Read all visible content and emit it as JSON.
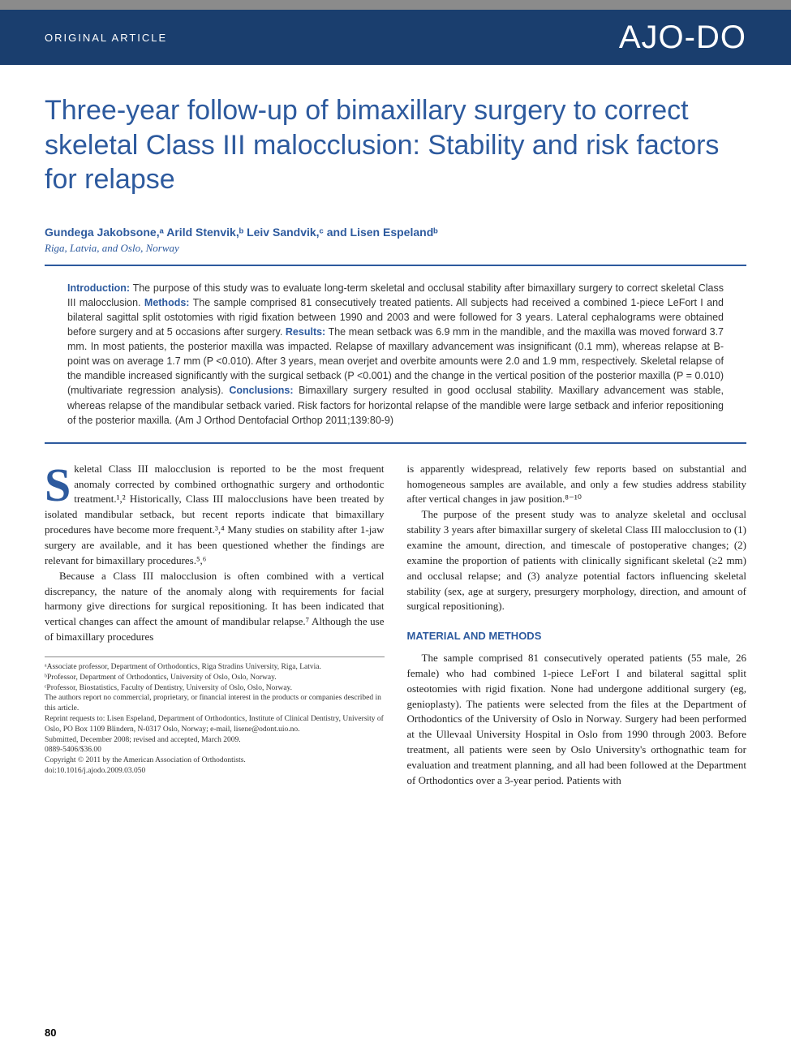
{
  "colors": {
    "primary_blue": "#2d5a9e",
    "header_blue": "#1a3e6e",
    "gray_bar": "#8b8b8b",
    "text": "#333333",
    "background": "#ffffff"
  },
  "typography": {
    "title_fontsize": 34,
    "body_fontsize": 13,
    "abstract_fontsize": 12.5,
    "footnote_fontsize": 9.5,
    "dropcap_fontsize": 58
  },
  "header": {
    "article_type": "ORIGINAL ARTICLE",
    "journal_logo": "AJO-DO"
  },
  "title": "Three-year follow-up of bimaxillary surgery to correct skeletal Class III malocclusion: Stability and risk factors for relapse",
  "authors_line": "Gundega Jakobsone,ᵃ Arild Stenvik,ᵇ Leiv Sandvik,ᶜ and Lisen Espelandᵇ",
  "location": "Riga, Latvia, and Oslo, Norway",
  "abstract": {
    "intro_label": "Introduction:",
    "intro": " The purpose of this study was to evaluate long-term skeletal and occlusal stability after bimaxillary surgery to correct skeletal Class III malocclusion. ",
    "methods_label": "Methods:",
    "methods": " The sample comprised 81 consecutively treated patients. All subjects had received a combined 1-piece LeFort I and bilateral sagittal split ostotomies with rigid fixation between 1990 and 2003 and were followed for 3 years. Lateral cephalograms were obtained before surgery and at 5 occasions after surgery. ",
    "results_label": "Results:",
    "results": " The mean setback was 6.9 mm in the mandible, and the maxilla was moved forward 3.7 mm. In most patients, the posterior maxilla was impacted. Relapse of maxillary advancement was insignificant (0.1 mm), whereas relapse at B-point was on average 1.7 mm (P <0.010). After 3 years, mean overjet and overbite amounts were 2.0 and 1.9 mm, respectively. Skeletal relapse of the mandible increased significantly with the surgical setback (P <0.001) and the change in the vertical position of the posterior maxilla (P = 0.010) (multivariate regression analysis). ",
    "conclusions_label": "Conclusions:",
    "conclusions": " Bimaxillary surgery resulted in good occlusal stability. Maxillary advancement was stable, whereas relapse of the mandibular setback varied. Risk factors for horizontal relapse of the mandible were large setback and inferior repositioning of the posterior maxilla. (Am J Orthod Dentofacial Orthop 2011;139:80-9)"
  },
  "body": {
    "col1_p1": "keletal Class III malocclusion is reported to be the most frequent anomaly corrected by combined orthognathic surgery and orthodontic treatment.¹,² Historically, Class III malocclusions have been treated by isolated mandibular setback, but recent reports indicate that bimaxillary procedures have become more frequent.³,⁴ Many studies on stability after 1-jaw surgery are available, and it has been questioned whether the findings are relevant for bimaxillary procedures.⁵,⁶",
    "col1_p2": "Because a Class III malocclusion is often combined with a vertical discrepancy, the nature of the anomaly along with requirements for facial harmony give directions for surgical repositioning. It has been indicated that vertical changes can affect the amount of mandibular relapse.⁷ Although the use of bimaxillary procedures",
    "col2_p1": "is apparently widespread, relatively few reports based on substantial and homogeneous samples are available, and only a few studies address stability after vertical changes in jaw position.⁸⁻¹⁰",
    "col2_p2": "The purpose of the present study was to analyze skeletal and occlusal stability 3 years after bimaxillar surgery of skeletal Class III malocclusion to (1) examine the amount, direction, and timescale of postoperative changes; (2) examine the proportion of patients with clinically significant skeletal (≥2 mm) and occlusal relapse; and (3) analyze potential factors influencing skeletal stability (sex, age at surgery, presurgery morphology, direction, and amount of surgical repositioning).",
    "section_head": "MATERIAL AND METHODS",
    "col2_p3": "The sample comprised 81 consecutively operated patients (55 male, 26 female) who had combined 1-piece LeFort I and bilateral sagittal split osteotomies with rigid fixation. None had undergone additional surgery (eg, genioplasty). The patients were selected from the files at the Department of Orthodontics of the University of Oslo in Norway. Surgery had been performed at the Ullevaal University Hospital in Oslo from 1990 through 2003. Before treatment, all patients were seen by Oslo University's orthognathic team for evaluation and treatment planning, and all had been followed at the Department of Orthodontics over a 3-year period. Patients with"
  },
  "footnotes": {
    "a": "ᵃAssociate professor, Department of Orthodontics, Riga Stradins University, Riga, Latvia.",
    "b": "ᵇProfessor, Department of Orthodontics, University of Oslo, Oslo, Norway.",
    "c": "ᶜProfessor, Biostatistics, Faculty of Dentistry, University of Oslo, Oslo, Norway.",
    "disclosure": "The authors report no commercial, proprietary, or financial interest in the products or companies described in this article.",
    "reprint": "Reprint requests to: Lisen Espeland, Department of Orthodontics, Institute of Clinical Dentistry, University of Oslo, PO Box 1109 Blindern, N-0317 Oslo, Norway; e-mail, lisene@odont.uio.no.",
    "submitted": "Submitted, December 2008; revised and accepted, March 2009.",
    "issn": "0889-5406/$36.00",
    "copyright": "Copyright © 2011 by the American Association of Orthodontists.",
    "doi": "doi:10.1016/j.ajodo.2009.03.050"
  },
  "page_number": "80"
}
